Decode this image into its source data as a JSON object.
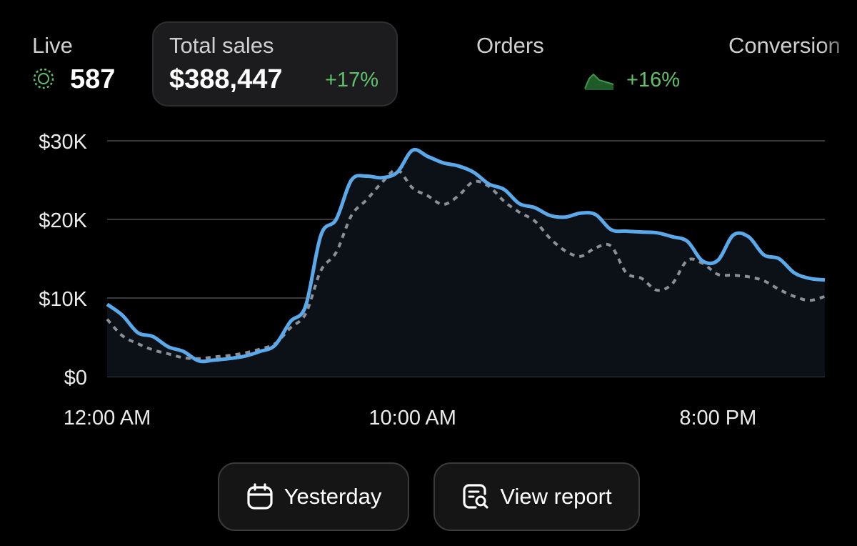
{
  "metrics": {
    "live": {
      "label": "Live",
      "value": "587",
      "icon": "live-pulse-icon"
    },
    "total_sales": {
      "label": "Total sales",
      "value": "$388,447",
      "delta": "+17%"
    },
    "orders": {
      "label": "Orders",
      "delta": "+16%",
      "icon": "sparkline-icon"
    },
    "conversion": {
      "label": "Conversion"
    }
  },
  "colors": {
    "accent_blue": "#5aa9ea",
    "comparison_gray": "#8a8f98",
    "positive_green": "#5fc26a",
    "background": "#000000",
    "card": "#1c1c1e"
  },
  "chart_data": {
    "type": "line",
    "x_axis": {
      "ticks": [
        "12:00 AM",
        "10:00 AM",
        "8:00 PM"
      ],
      "tick_hours": [
        0,
        10,
        20
      ],
      "range_hours": [
        0,
        23.5
      ]
    },
    "y_axis": {
      "ticks": [
        "$0",
        "$10K",
        "$20K",
        "$30K"
      ],
      "tick_values": [
        0,
        10000,
        20000,
        30000
      ],
      "range": [
        0,
        30000
      ]
    },
    "grid": true,
    "series": [
      {
        "style": "solid",
        "color": "#5aa9ea",
        "x": [
          0,
          0.5,
          1,
          1.5,
          2,
          2.5,
          3,
          3.5,
          4,
          4.5,
          5,
          5.5,
          6,
          6.5,
          7,
          7.5,
          8,
          8.5,
          9,
          9.5,
          10,
          10.5,
          11,
          11.5,
          12,
          12.5,
          13,
          13.5,
          14,
          14.5,
          15,
          15.5,
          16,
          16.5,
          17,
          17.5,
          18,
          18.5,
          19,
          19.5,
          20,
          20.5,
          21,
          21.5,
          22,
          22.5,
          23,
          23.5
        ],
        "values": [
          9200,
          7800,
          5600,
          5100,
          3800,
          3200,
          2000,
          2100,
          2300,
          2600,
          3200,
          4000,
          7000,
          9000,
          18000,
          20000,
          25000,
          25500,
          25300,
          26000,
          28800,
          28000,
          27200,
          26800,
          26000,
          24500,
          23800,
          22000,
          21500,
          20500,
          20300,
          20800,
          20600,
          18700,
          18500,
          18400,
          18300,
          17800,
          17200,
          14700,
          14800,
          18000,
          17800,
          15500,
          15000,
          13200,
          12500,
          12300
        ]
      },
      {
        "style": "dashed",
        "color": "#8a8f98",
        "x": [
          0,
          0.5,
          1,
          1.5,
          2,
          2.5,
          3,
          3.5,
          4,
          4.5,
          5,
          5.5,
          6,
          6.5,
          7,
          7.5,
          8,
          8.5,
          9,
          9.5,
          10,
          10.5,
          11,
          11.5,
          12,
          12.5,
          13,
          13.5,
          14,
          14.5,
          15,
          15.5,
          16,
          16.5,
          17,
          17.5,
          18,
          18.5,
          19,
          19.5,
          20,
          20.5,
          21,
          21.5,
          22,
          22.5,
          23,
          23.5
        ],
        "values": [
          7300,
          5200,
          4200,
          3400,
          2900,
          2400,
          2300,
          2500,
          2700,
          3000,
          3500,
          4200,
          6200,
          8000,
          13500,
          15800,
          20500,
          22500,
          24700,
          26300,
          24000,
          23000,
          21900,
          23000,
          24800,
          24200,
          22300,
          20900,
          19800,
          17600,
          16000,
          15300,
          16400,
          16600,
          13200,
          12500,
          11000,
          11800,
          14800,
          14400,
          13000,
          12900,
          12700,
          12200,
          11100,
          10200,
          9700,
          10200
        ]
      }
    ]
  },
  "buttons": {
    "yesterday": {
      "label": "Yesterday",
      "icon": "calendar-icon"
    },
    "view_report": {
      "label": "View report",
      "icon": "report-search-icon"
    }
  }
}
